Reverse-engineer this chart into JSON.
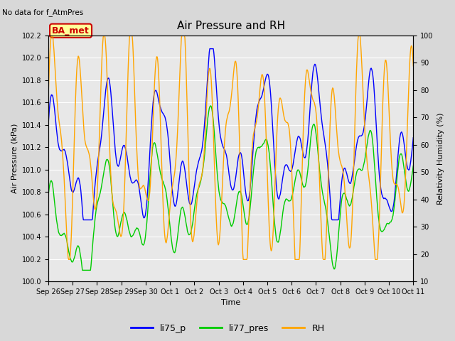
{
  "title": "Air Pressure and RH",
  "subtitle": "No data for f_AtmPres",
  "xlabel": "Time",
  "ylabel_left": "Air Pressure (kPa)",
  "ylabel_right": "Relativity Humidity (%)",
  "ylim_left": [
    100.0,
    102.2
  ],
  "ylim_right": [
    10,
    100
  ],
  "yticks_left": [
    100.0,
    100.2,
    100.4,
    100.6,
    100.8,
    101.0,
    101.2,
    101.4,
    101.6,
    101.8,
    102.0,
    102.2
  ],
  "yticks_right": [
    10,
    20,
    30,
    40,
    50,
    60,
    70,
    80,
    90,
    100
  ],
  "xtick_labels": [
    "Sep 26",
    "Sep 27",
    "Sep 28",
    "Sep 29",
    "Sep 30",
    "Oct 1",
    "Oct 2",
    "Oct 3",
    "Oct 4",
    "Oct 5",
    "Oct 6",
    "Oct 7",
    "Oct 8",
    "Oct 9",
    "Oct 10",
    "Oct 11"
  ],
  "legend_labels": [
    "li75_p",
    "li77_pres",
    "RH"
  ],
  "line_colors": [
    "blue",
    "#00cc00",
    "orange"
  ],
  "bg_color": "#d8d8d8",
  "plot_bg_color": "#e8e8e8",
  "station_label": "BA_met",
  "station_label_color": "#cc0000",
  "station_box_color": "#ffff99",
  "title_fontsize": 11,
  "axis_fontsize": 8,
  "tick_fontsize": 7
}
